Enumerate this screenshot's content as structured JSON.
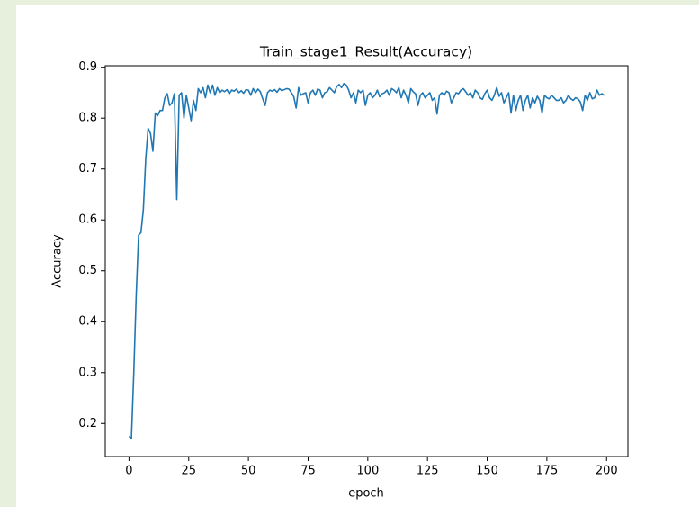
{
  "chart_data": {
    "type": "line",
    "title": "Train_stage1_Result(Accuracy)",
    "x_label": "epoch",
    "y_label": "Accuracy",
    "x": [
      0,
      1,
      2,
      3,
      4,
      5,
      6,
      7,
      8,
      9,
      10,
      11,
      12,
      13,
      14,
      15,
      16,
      17,
      18,
      19,
      20,
      21,
      22,
      23,
      24,
      25,
      26,
      27,
      28,
      29,
      30,
      31,
      32,
      33,
      34,
      35,
      36,
      37,
      38,
      39,
      40,
      41,
      42,
      43,
      44,
      45,
      46,
      47,
      48,
      49,
      50,
      51,
      52,
      53,
      54,
      55,
      56,
      57,
      58,
      59,
      60,
      61,
      62,
      63,
      64,
      65,
      66,
      67,
      68,
      69,
      70,
      71,
      72,
      73,
      74,
      75,
      76,
      77,
      78,
      79,
      80,
      81,
      82,
      83,
      84,
      85,
      86,
      87,
      88,
      89,
      90,
      91,
      92,
      93,
      94,
      95,
      96,
      97,
      98,
      99,
      100,
      101,
      102,
      103,
      104,
      105,
      106,
      107,
      108,
      109,
      110,
      111,
      112,
      113,
      114,
      115,
      116,
      117,
      118,
      119,
      120,
      121,
      122,
      123,
      124,
      125,
      126,
      127,
      128,
      129,
      130,
      131,
      132,
      133,
      134,
      135,
      136,
      137,
      138,
      139,
      140,
      141,
      142,
      143,
      144,
      145,
      146,
      147,
      148,
      149,
      150,
      151,
      152,
      153,
      154,
      155,
      156,
      157,
      158,
      159,
      160,
      161,
      162,
      163,
      164,
      165,
      166,
      167,
      168,
      169,
      170,
      171,
      172,
      173,
      174,
      175,
      176,
      177,
      178,
      179,
      180,
      181,
      182,
      183,
      184,
      185,
      186,
      187,
      188,
      189,
      190,
      191,
      192,
      193,
      194,
      195,
      196,
      197,
      198,
      199
    ],
    "values": [
      0.175,
      0.17,
      0.3,
      0.45,
      0.57,
      0.575,
      0.62,
      0.72,
      0.78,
      0.77,
      0.735,
      0.81,
      0.805,
      0.815,
      0.815,
      0.84,
      0.848,
      0.825,
      0.83,
      0.848,
      0.64,
      0.845,
      0.85,
      0.8,
      0.845,
      0.82,
      0.795,
      0.835,
      0.815,
      0.858,
      0.85,
      0.86,
      0.84,
      0.865,
      0.85,
      0.865,
      0.845,
      0.86,
      0.85,
      0.855,
      0.852,
      0.856,
      0.848,
      0.855,
      0.853,
      0.857,
      0.85,
      0.854,
      0.849,
      0.856,
      0.855,
      0.845,
      0.858,
      0.85,
      0.857,
      0.852,
      0.838,
      0.825,
      0.85,
      0.855,
      0.853,
      0.856,
      0.851,
      0.858,
      0.854,
      0.856,
      0.858,
      0.857,
      0.85,
      0.842,
      0.82,
      0.86,
      0.845,
      0.848,
      0.85,
      0.83,
      0.85,
      0.855,
      0.845,
      0.857,
      0.855,
      0.84,
      0.85,
      0.852,
      0.86,
      0.855,
      0.85,
      0.862,
      0.866,
      0.86,
      0.868,
      0.865,
      0.855,
      0.84,
      0.85,
      0.83,
      0.855,
      0.85,
      0.855,
      0.825,
      0.845,
      0.85,
      0.84,
      0.845,
      0.855,
      0.842,
      0.848,
      0.85,
      0.855,
      0.845,
      0.858,
      0.855,
      0.85,
      0.86,
      0.84,
      0.855,
      0.845,
      0.83,
      0.858,
      0.852,
      0.848,
      0.825,
      0.845,
      0.85,
      0.84,
      0.845,
      0.85,
      0.835,
      0.84,
      0.808,
      0.845,
      0.85,
      0.845,
      0.853,
      0.85,
      0.83,
      0.84,
      0.85,
      0.848,
      0.855,
      0.858,
      0.852,
      0.845,
      0.85,
      0.84,
      0.855,
      0.85,
      0.84,
      0.837,
      0.848,
      0.855,
      0.84,
      0.835,
      0.845,
      0.86,
      0.843,
      0.85,
      0.83,
      0.84,
      0.85,
      0.81,
      0.845,
      0.815,
      0.835,
      0.845,
      0.815,
      0.835,
      0.845,
      0.82,
      0.84,
      0.83,
      0.843,
      0.835,
      0.81,
      0.845,
      0.84,
      0.838,
      0.845,
      0.84,
      0.835,
      0.835,
      0.84,
      0.83,
      0.835,
      0.845,
      0.838,
      0.835,
      0.84,
      0.838,
      0.832,
      0.815,
      0.845,
      0.835,
      0.85,
      0.838,
      0.84,
      0.855,
      0.845,
      0.848,
      0.845
    ],
    "color": "#1f77b4",
    "xlim": [
      -9.95,
      208.95
    ],
    "xticks": [
      0,
      25,
      50,
      75,
      100,
      125,
      150,
      175,
      200
    ],
    "ylim": [
      0.135,
      0.903
    ],
    "yticks": [
      0.2,
      0.3,
      0.4,
      0.5,
      0.6,
      0.7,
      0.8,
      0.9
    ]
  }
}
